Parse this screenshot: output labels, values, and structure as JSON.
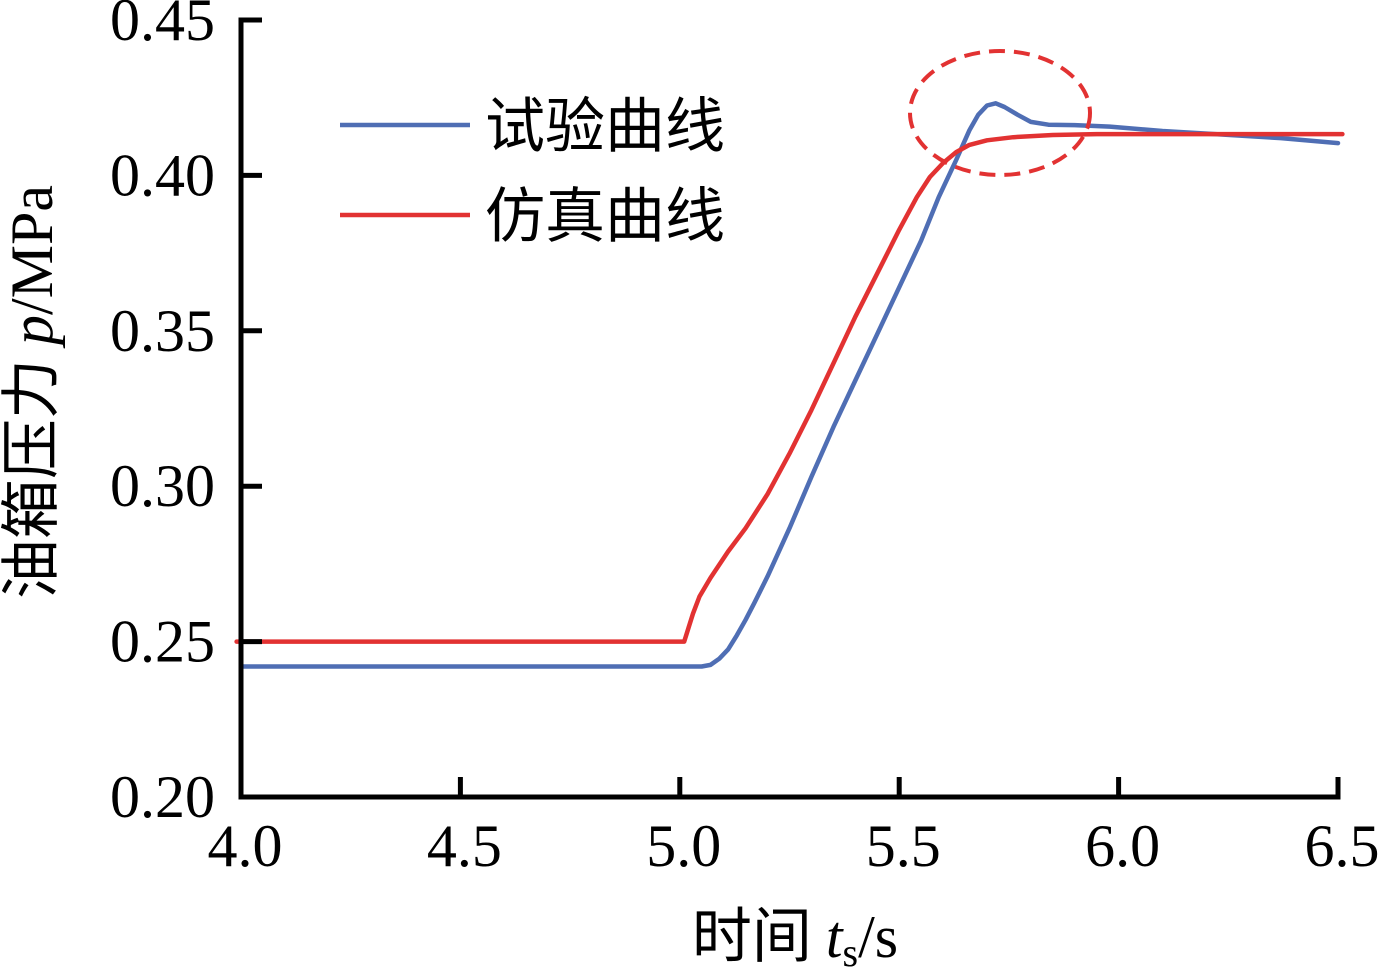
{
  "chart_data": {
    "type": "line",
    "xlabel": {
      "text": "时间",
      "symbol": "t",
      "subscript": "s",
      "unit": "/s"
    },
    "ylabel": {
      "text": "油箱压力",
      "symbol": "p",
      "unit": "/MPa"
    },
    "xlim": [
      4.0,
      6.5
    ],
    "ylim": [
      0.2,
      0.45
    ],
    "xticks": [
      "4.0",
      "4.5",
      "5.0",
      "5.5",
      "6.0",
      "6.5"
    ],
    "yticks": [
      "0.20",
      "0.25",
      "0.30",
      "0.35",
      "0.40",
      "0.45"
    ],
    "grid": false,
    "legend_position": "top-left",
    "annotation_color": "#e23232",
    "series": [
      {
        "name": "试验曲线",
        "color": "#4f6eb4",
        "x": [
          4.0,
          5.0,
          5.05,
          5.07,
          5.09,
          5.11,
          5.13,
          5.15,
          5.17,
          5.2,
          5.25,
          5.3,
          5.35,
          5.4,
          5.45,
          5.5,
          5.55,
          5.59,
          5.63,
          5.66,
          5.68,
          5.7,
          5.72,
          5.74,
          5.77,
          5.8,
          5.84,
          5.9,
          5.98,
          6.1,
          6.23,
          6.37,
          6.5
        ],
        "y": [
          0.242,
          0.242,
          0.242,
          0.2425,
          0.2445,
          0.2475,
          0.252,
          0.257,
          0.2625,
          0.271,
          0.2865,
          0.303,
          0.319,
          0.334,
          0.349,
          0.364,
          0.379,
          0.393,
          0.405,
          0.4145,
          0.4195,
          0.4225,
          0.4232,
          0.422,
          0.4195,
          0.4172,
          0.4163,
          0.4162,
          0.4157,
          0.4143,
          0.4132,
          0.412,
          0.4104
        ]
      },
      {
        "name": "仿真曲线",
        "color": "#e23232",
        "x": [
          3.99,
          5.01,
          5.02,
          5.03,
          5.045,
          5.07,
          5.11,
          5.15,
          5.2,
          5.25,
          5.3,
          5.35,
          5.4,
          5.45,
          5.5,
          5.54,
          5.57,
          5.6,
          5.63,
          5.66,
          5.7,
          5.76,
          5.85,
          5.95,
          6.2,
          6.51
        ],
        "y": [
          0.25,
          0.25,
          0.2545,
          0.259,
          0.2645,
          0.2705,
          0.279,
          0.2865,
          0.2975,
          0.3105,
          0.3245,
          0.3395,
          0.3545,
          0.3685,
          0.3825,
          0.393,
          0.3995,
          0.404,
          0.4075,
          0.4098,
          0.4113,
          0.4123,
          0.413,
          0.4133,
          0.4133,
          0.4133
        ]
      }
    ]
  }
}
